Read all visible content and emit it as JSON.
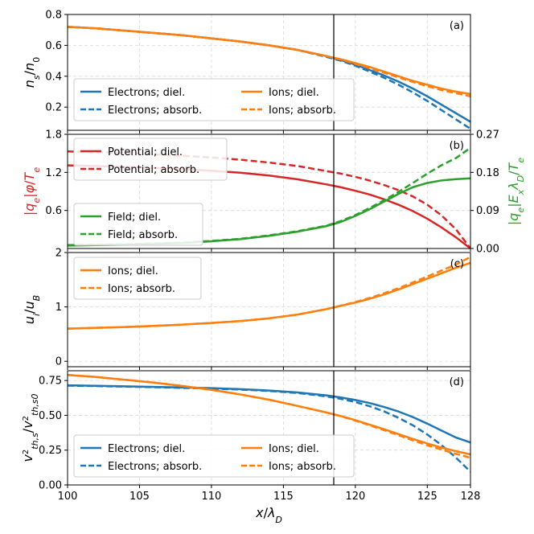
{
  "figure": {
    "xlabel": "x/λ_D",
    "xlim": [
      100,
      128
    ],
    "xticks": [
      100,
      105,
      110,
      115,
      120,
      125,
      128
    ],
    "xtick_labels": [
      "100",
      "105",
      "110",
      "115",
      "120",
      "125",
      "128"
    ],
    "vline_x": 118.5,
    "colors": {
      "blue": "#1f77b4",
      "orange": "#ff7f0e",
      "red": "#d62728",
      "green": "#2ca02c"
    }
  },
  "chart_data": [
    {
      "id": "a",
      "panel_label": "(a)",
      "type": "line",
      "ylabel": "n_s/n_0",
      "ylim": [
        0.05,
        0.8
      ],
      "yticks": [
        0.2,
        0.4,
        0.6,
        0.8
      ],
      "ytick_labels": [
        "0.2",
        "0.4",
        "0.6",
        "0.8"
      ],
      "legend": {
        "placement": "lower-left",
        "columns": 2
      },
      "series": [
        {
          "name": "Electrons; diel.",
          "color": "#1f77b4",
          "style": "solid",
          "x": [
            100,
            102,
            104,
            106,
            108,
            110,
            112,
            114,
            116,
            118,
            119,
            120,
            121,
            122,
            123,
            124,
            125,
            126,
            127,
            128
          ],
          "y": [
            0.72,
            0.71,
            0.695,
            0.68,
            0.665,
            0.645,
            0.625,
            0.6,
            0.57,
            0.53,
            0.505,
            0.475,
            0.44,
            0.405,
            0.365,
            0.32,
            0.27,
            0.215,
            0.16,
            0.105
          ]
        },
        {
          "name": "Electrons; absorb.",
          "color": "#1f77b4",
          "style": "dashed",
          "x": [
            100,
            102,
            104,
            106,
            108,
            110,
            112,
            114,
            116,
            118,
            119,
            120,
            121,
            122,
            123,
            124,
            125,
            126,
            127,
            128
          ],
          "y": [
            0.72,
            0.71,
            0.695,
            0.68,
            0.665,
            0.645,
            0.625,
            0.6,
            0.57,
            0.525,
            0.5,
            0.468,
            0.43,
            0.39,
            0.345,
            0.295,
            0.24,
            0.18,
            0.12,
            0.06
          ]
        },
        {
          "name": "Ions; diel.",
          "color": "#ff7f0e",
          "style": "solid",
          "x": [
            100,
            102,
            104,
            106,
            108,
            110,
            112,
            114,
            116,
            118,
            119,
            120,
            121,
            122,
            123,
            124,
            125,
            126,
            127,
            128
          ],
          "y": [
            0.72,
            0.71,
            0.695,
            0.68,
            0.665,
            0.645,
            0.625,
            0.6,
            0.57,
            0.53,
            0.51,
            0.485,
            0.46,
            0.43,
            0.4,
            0.37,
            0.345,
            0.32,
            0.3,
            0.285
          ]
        },
        {
          "name": "Ions; absorb.",
          "color": "#ff7f0e",
          "style": "dashed",
          "x": [
            100,
            102,
            104,
            106,
            108,
            110,
            112,
            114,
            116,
            118,
            119,
            120,
            121,
            122,
            123,
            124,
            125,
            126,
            127,
            128
          ],
          "y": [
            0.72,
            0.71,
            0.695,
            0.68,
            0.665,
            0.645,
            0.625,
            0.6,
            0.57,
            0.53,
            0.508,
            0.48,
            0.452,
            0.423,
            0.392,
            0.363,
            0.335,
            0.31,
            0.29,
            0.27
          ]
        }
      ]
    },
    {
      "id": "b",
      "panel_label": "(b)",
      "type": "line",
      "ylabel": "|q_e|φ/T_e",
      "ylim": [
        0,
        1.8
      ],
      "yticks": [
        0.6,
        1.2,
        1.8
      ],
      "ytick_labels": [
        "0.6",
        "1.2",
        "1.8"
      ],
      "ylabel_right": "|q_e|E_x λ_D/T_e",
      "ylim_right": [
        0,
        0.27
      ],
      "yticks_right": [
        0,
        0.09,
        0.18,
        0.27
      ],
      "ytick_labels_right": [
        "0.00",
        "0.09",
        "0.18",
        "0.27"
      ],
      "legend_left_placement": "upper-left",
      "legend_right_placement": "lower-left",
      "series": [
        {
          "name": "Potential; diel.",
          "color": "#d62728",
          "style": "solid",
          "axis": "left",
          "x": [
            100,
            102,
            104,
            106,
            108,
            110,
            112,
            114,
            116,
            118,
            119,
            120,
            121,
            122,
            123,
            124,
            125,
            126,
            127,
            128
          ],
          "y": [
            1.31,
            1.3,
            1.285,
            1.27,
            1.25,
            1.225,
            1.195,
            1.15,
            1.09,
            1.01,
            0.965,
            0.91,
            0.85,
            0.775,
            0.69,
            0.59,
            0.47,
            0.33,
            0.175,
            0.0
          ]
        },
        {
          "name": "Potential; absorb.",
          "color": "#d62728",
          "style": "dashed",
          "axis": "left",
          "x": [
            100,
            102,
            104,
            106,
            108,
            110,
            112,
            114,
            116,
            118,
            119,
            120,
            121,
            122,
            123,
            124,
            125,
            126,
            127,
            128
          ],
          "y": [
            1.53,
            1.52,
            1.505,
            1.485,
            1.46,
            1.435,
            1.4,
            1.355,
            1.3,
            1.22,
            1.18,
            1.13,
            1.07,
            1.0,
            0.92,
            0.82,
            0.69,
            0.52,
            0.3,
            0.0
          ]
        },
        {
          "name": "Field; diel.",
          "color": "#2ca02c",
          "style": "solid",
          "axis": "right",
          "x": [
            100,
            102,
            104,
            106,
            108,
            110,
            112,
            114,
            116,
            118,
            119,
            120,
            121,
            122,
            123,
            124,
            125,
            126,
            127,
            128
          ],
          "y": [
            0.007,
            0.008,
            0.009,
            0.011,
            0.013,
            0.017,
            0.022,
            0.03,
            0.04,
            0.053,
            0.063,
            0.077,
            0.093,
            0.111,
            0.129,
            0.145,
            0.155,
            0.161,
            0.164,
            0.166
          ]
        },
        {
          "name": "Field; absorb.",
          "color": "#2ca02c",
          "style": "dashed",
          "axis": "right",
          "x": [
            100,
            102,
            104,
            106,
            108,
            110,
            112,
            114,
            116,
            118,
            119,
            120,
            121,
            122,
            123,
            124,
            125,
            126,
            127,
            128
          ],
          "y": [
            0.008,
            0.009,
            0.01,
            0.012,
            0.014,
            0.018,
            0.023,
            0.031,
            0.041,
            0.054,
            0.065,
            0.079,
            0.096,
            0.114,
            0.134,
            0.155,
            0.177,
            0.197,
            0.214,
            0.238
          ]
        }
      ]
    },
    {
      "id": "c",
      "panel_label": "(c)",
      "type": "line",
      "ylabel": "u_i/u_B",
      "ylim": [
        -0.1,
        2.0
      ],
      "yticks": [
        0,
        1,
        2
      ],
      "ytick_labels": [
        "0",
        "1",
        "2"
      ],
      "legend": {
        "placement": "upper-left",
        "columns": 1
      },
      "series": [
        {
          "name": "Ions; diel.",
          "color": "#ff7f0e",
          "style": "solid",
          "x": [
            100,
            102,
            104,
            106,
            108,
            110,
            112,
            114,
            116,
            118,
            119,
            120,
            121,
            122,
            123,
            124,
            125,
            126,
            127,
            128
          ],
          "y": [
            0.6,
            0.615,
            0.63,
            0.65,
            0.675,
            0.705,
            0.74,
            0.79,
            0.86,
            0.96,
            1.02,
            1.08,
            1.15,
            1.23,
            1.32,
            1.42,
            1.52,
            1.62,
            1.72,
            1.81
          ]
        },
        {
          "name": "Ions; absorb.",
          "color": "#ff7f0e",
          "style": "dashed",
          "x": [
            100,
            102,
            104,
            106,
            108,
            110,
            112,
            114,
            116,
            118,
            119,
            120,
            121,
            122,
            123,
            124,
            125,
            126,
            127,
            128
          ],
          "y": [
            0.6,
            0.615,
            0.63,
            0.65,
            0.675,
            0.705,
            0.74,
            0.79,
            0.86,
            0.96,
            1.025,
            1.09,
            1.165,
            1.25,
            1.345,
            1.45,
            1.56,
            1.67,
            1.78,
            1.92
          ]
        }
      ]
    },
    {
      "id": "d",
      "panel_label": "(d)",
      "type": "line",
      "ylabel": "v²_th,s/v²_th,s0",
      "ylim": [
        0,
        0.82
      ],
      "yticks": [
        0.0,
        0.25,
        0.5,
        0.75
      ],
      "ytick_labels": [
        "0.00",
        "0.25",
        "0.50",
        "0.75"
      ],
      "legend": {
        "placement": "lower-left",
        "columns": 2
      },
      "series": [
        {
          "name": "Electrons; diel.",
          "color": "#1f77b4",
          "style": "solid",
          "x": [
            100,
            102,
            104,
            106,
            108,
            110,
            112,
            114,
            116,
            118,
            119,
            120,
            121,
            122,
            123,
            124,
            125,
            126,
            127,
            128
          ],
          "y": [
            0.715,
            0.712,
            0.708,
            0.704,
            0.7,
            0.695,
            0.688,
            0.678,
            0.664,
            0.643,
            0.628,
            0.61,
            0.588,
            0.56,
            0.527,
            0.487,
            0.44,
            0.39,
            0.34,
            0.305
          ]
        },
        {
          "name": "Electrons; absorb.",
          "color": "#1f77b4",
          "style": "dashed",
          "x": [
            100,
            102,
            104,
            106,
            108,
            110,
            112,
            114,
            116,
            118,
            119,
            120,
            121,
            122,
            123,
            124,
            125,
            126,
            127,
            128
          ],
          "y": [
            0.713,
            0.71,
            0.706,
            0.702,
            0.697,
            0.692,
            0.685,
            0.675,
            0.66,
            0.636,
            0.618,
            0.595,
            0.565,
            0.528,
            0.482,
            0.428,
            0.362,
            0.285,
            0.195,
            0.095
          ]
        },
        {
          "name": "Ions; diel.",
          "color": "#ff7f0e",
          "style": "solid",
          "x": [
            100,
            102,
            104,
            106,
            108,
            110,
            112,
            114,
            116,
            118,
            119,
            120,
            121,
            122,
            123,
            124,
            125,
            126,
            127,
            128
          ],
          "y": [
            0.79,
            0.775,
            0.755,
            0.735,
            0.71,
            0.683,
            0.65,
            0.612,
            0.567,
            0.52,
            0.495,
            0.465,
            0.433,
            0.4,
            0.365,
            0.33,
            0.298,
            0.268,
            0.242,
            0.22
          ]
        },
        {
          "name": "Ions; absorb.",
          "color": "#ff7f0e",
          "style": "dashed",
          "x": [
            100,
            102,
            104,
            106,
            108,
            110,
            112,
            114,
            116,
            118,
            119,
            120,
            121,
            122,
            123,
            124,
            125,
            126,
            127,
            128
          ],
          "y": [
            0.79,
            0.775,
            0.755,
            0.735,
            0.71,
            0.683,
            0.65,
            0.612,
            0.567,
            0.52,
            0.493,
            0.462,
            0.428,
            0.393,
            0.357,
            0.32,
            0.285,
            0.253,
            0.223,
            0.195
          ]
        }
      ]
    }
  ]
}
